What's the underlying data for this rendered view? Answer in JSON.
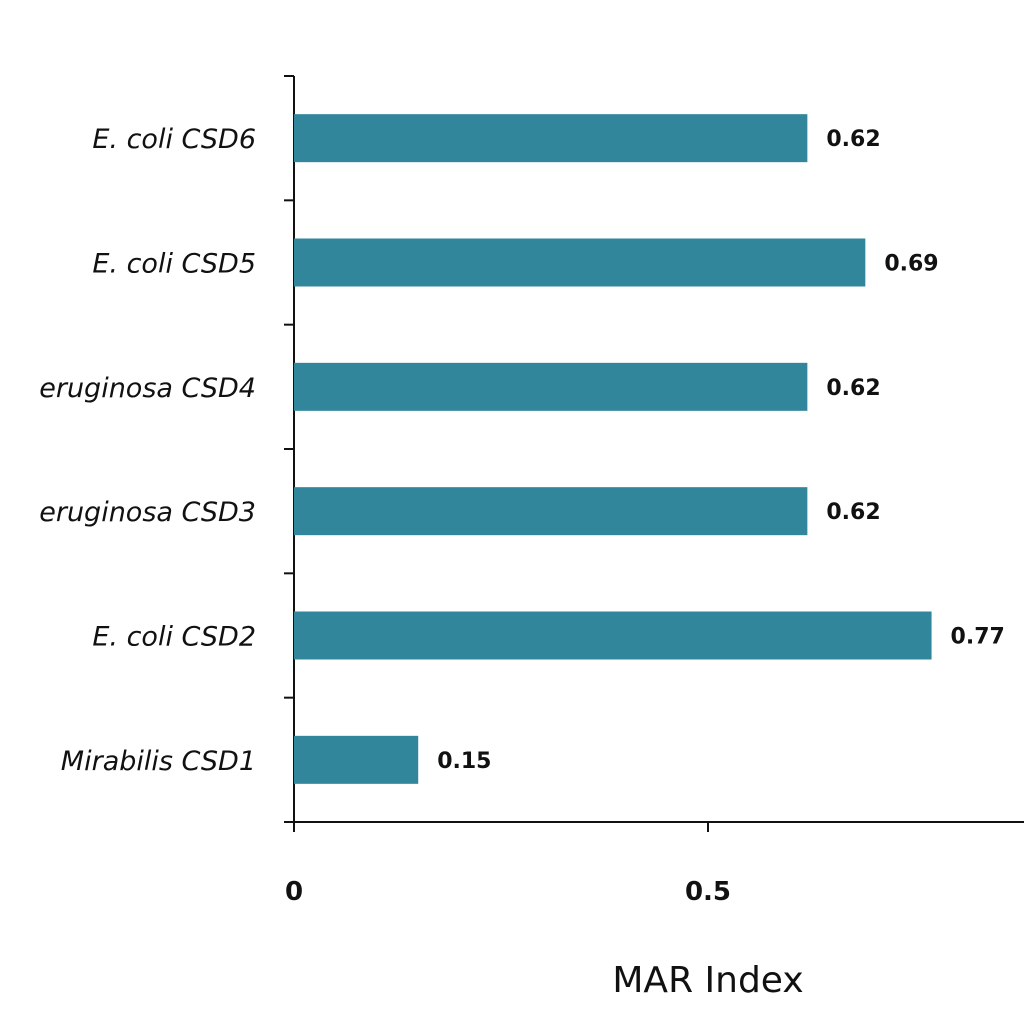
{
  "chart_data": {
    "type": "bar",
    "orientation": "horizontal",
    "categories": [
      "E.  coli CSD6",
      "E.  coli CSD5",
      "eruginosa CSD4",
      "eruginosa CSD3",
      "E.  coli CSD2",
      "Mirabilis CSD1"
    ],
    "values": [
      0.62,
      0.69,
      0.62,
      0.62,
      0.77,
      0.15
    ],
    "value_labels": [
      "0.62",
      "0.69",
      "0.62",
      "0.62",
      "0.77",
      "0.15"
    ],
    "xlabel": "MAR Index",
    "ylabel": "",
    "xlim": [
      0,
      0.88
    ],
    "x_ticks": [
      0,
      0.5
    ],
    "x_tick_labels": [
      "0",
      "0.5"
    ],
    "grid": false,
    "bar_color": "#31869B"
  }
}
